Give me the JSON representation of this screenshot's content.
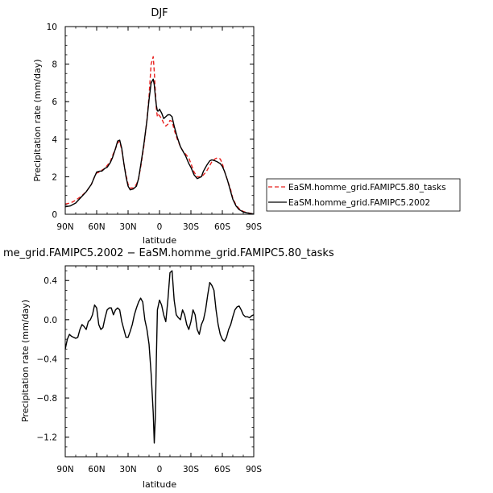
{
  "chart_data": [
    {
      "type": "line",
      "title": "DJF",
      "xlabel": "latitude",
      "ylabel": "Precipitation rate (mm/day)",
      "x_ticks": [
        {
          "value": 90,
          "label": "90N"
        },
        {
          "value": 60,
          "label": "60N"
        },
        {
          "value": 30,
          "label": "30N"
        },
        {
          "value": 0,
          "label": "0"
        },
        {
          "value": -30,
          "label": "30S"
        },
        {
          "value": -60,
          "label": "60S"
        },
        {
          "value": -90,
          "label": "90S"
        }
      ],
      "xlim": [
        90,
        -90
      ],
      "ylim": [
        0,
        10
      ],
      "y_ticks": [
        {
          "value": 0,
          "label": "0"
        },
        {
          "value": 2,
          "label": "2"
        },
        {
          "value": 4,
          "label": "4"
        },
        {
          "value": 6,
          "label": "6"
        },
        {
          "value": 8,
          "label": "8"
        },
        {
          "value": 10,
          "label": "10"
        }
      ],
      "legend_position": "right",
      "series": [
        {
          "name": "EaSM.homme_grid.FAMIPC5.80_tasks",
          "color": "#e8211f",
          "dash": "dashed",
          "x": [
            90,
            85,
            80,
            75,
            70,
            65,
            62,
            60,
            57,
            55,
            52,
            50,
            47,
            45,
            42,
            40,
            38,
            36,
            34,
            32,
            30,
            28,
            25,
            22,
            20,
            18,
            15,
            12,
            10,
            8,
            6,
            5,
            4,
            3,
            2,
            1,
            0,
            -2,
            -4,
            -6,
            -8,
            -10,
            -12,
            -14,
            -17,
            -20,
            -22,
            -25,
            -28,
            -30,
            -33,
            -36,
            -40,
            -42,
            -45,
            -48,
            -50,
            -53,
            -55,
            -58,
            -60,
            -62,
            -65,
            -68,
            -70,
            -73,
            -76,
            -80,
            -84,
            -87,
            -90
          ],
          "y": [
            0.55,
            0.6,
            0.75,
            0.95,
            1.2,
            1.6,
            2.0,
            2.2,
            2.25,
            2.35,
            2.45,
            2.6,
            2.8,
            3.1,
            3.5,
            3.8,
            3.9,
            3.4,
            2.7,
            2.1,
            1.6,
            1.4,
            1.4,
            1.6,
            1.9,
            2.5,
            3.6,
            5.0,
            6.3,
            8.0,
            8.4,
            7.6,
            6.6,
            5.6,
            5.2,
            5.3,
            5.25,
            5.1,
            4.85,
            4.7,
            4.8,
            5.0,
            4.95,
            4.5,
            4.0,
            3.6,
            3.4,
            3.2,
            3.0,
            2.7,
            2.25,
            2.0,
            2.0,
            2.1,
            2.3,
            2.6,
            2.8,
            2.95,
            3.0,
            2.95,
            2.7,
            2.3,
            1.8,
            1.3,
            0.85,
            0.5,
            0.3,
            0.15,
            0.08,
            0.05,
            0.02
          ]
        },
        {
          "name": "EaSM.homme_grid.FAMIPC5.2002",
          "color": "#000000",
          "dash": "solid",
          "x": [
            90,
            85,
            80,
            75,
            70,
            65,
            62,
            60,
            57,
            55,
            52,
            50,
            47,
            45,
            42,
            40,
            38,
            36,
            34,
            32,
            30,
            28,
            25,
            22,
            20,
            18,
            15,
            12,
            10,
            8,
            6,
            5,
            4,
            3,
            2,
            1,
            0,
            -2,
            -4,
            -6,
            -8,
            -10,
            -12,
            -14,
            -17,
            -20,
            -22,
            -25,
            -28,
            -30,
            -33,
            -36,
            -40,
            -42,
            -45,
            -48,
            -50,
            -53,
            -55,
            -58,
            -60,
            -62,
            -65,
            -68,
            -70,
            -73,
            -76,
            -80,
            -84,
            -87,
            -90
          ],
          "y": [
            0.4,
            0.45,
            0.6,
            0.9,
            1.2,
            1.6,
            2.0,
            2.25,
            2.3,
            2.3,
            2.45,
            2.5,
            2.75,
            3.0,
            3.5,
            3.9,
            3.95,
            3.5,
            2.7,
            2.0,
            1.5,
            1.3,
            1.35,
            1.5,
            1.9,
            2.6,
            3.7,
            5.0,
            6.1,
            7.0,
            7.2,
            6.9,
            6.3,
            5.8,
            5.5,
            5.5,
            5.6,
            5.4,
            5.1,
            5.2,
            5.3,
            5.3,
            5.2,
            4.7,
            4.1,
            3.6,
            3.4,
            3.1,
            2.7,
            2.5,
            2.1,
            1.9,
            2.0,
            2.3,
            2.6,
            2.85,
            2.9,
            2.85,
            2.8,
            2.7,
            2.55,
            2.3,
            1.8,
            1.2,
            0.8,
            0.45,
            0.25,
            0.12,
            0.07,
            0.04,
            0.02
          ]
        }
      ]
    },
    {
      "type": "line",
      "title": "me_grid.FAMIPC5.2002 − EaSM.homme_grid.FAMIPC5.80_tasks",
      "xlabel": "latitude",
      "ylabel": "Precipitation rate (mm/day)",
      "x_ticks": [
        {
          "value": 90,
          "label": "90N"
        },
        {
          "value": 60,
          "label": "60N"
        },
        {
          "value": 30,
          "label": "30N"
        },
        {
          "value": 0,
          "label": "0"
        },
        {
          "value": -30,
          "label": "30S"
        },
        {
          "value": -60,
          "label": "60S"
        },
        {
          "value": -90,
          "label": "90S"
        }
      ],
      "xlim": [
        90,
        -90
      ],
      "ylim": [
        -1.4,
        0.55
      ],
      "y_ticks": [
        {
          "value": 0.4,
          "label": "0.4"
        },
        {
          "value": 0.0,
          "label": "0.0"
        },
        {
          "value": -0.4,
          "label": "−0.4"
        },
        {
          "value": -0.8,
          "label": "−0.8"
        },
        {
          "value": -1.2,
          "label": "−1.2"
        }
      ],
      "series": [
        {
          "color": "#000000",
          "dash": "solid",
          "x": [
            90,
            88,
            86,
            84,
            82,
            80,
            78,
            76,
            74,
            72,
            70,
            68,
            66,
            64,
            62,
            60,
            58,
            56,
            54,
            52,
            50,
            48,
            46,
            44,
            42,
            40,
            38,
            36,
            34,
            32,
            30,
            28,
            26,
            24,
            22,
            20,
            18,
            16,
            14,
            12,
            10,
            8,
            6,
            5,
            4,
            3,
            2,
            0,
            -2,
            -4,
            -6,
            -8,
            -10,
            -12,
            -14,
            -16,
            -18,
            -20,
            -22,
            -24,
            -26,
            -28,
            -30,
            -32,
            -34,
            -36,
            -38,
            -40,
            -42,
            -44,
            -46,
            -48,
            -50,
            -52,
            -54,
            -56,
            -58,
            -60,
            -62,
            -64,
            -66,
            -68,
            -70,
            -72,
            -74,
            -76,
            -78,
            -80,
            -82,
            -84,
            -86,
            -88,
            -90
          ],
          "y": [
            -0.3,
            -0.2,
            -0.15,
            -0.17,
            -0.18,
            -0.19,
            -0.18,
            -0.1,
            -0.05,
            -0.07,
            -0.1,
            -0.02,
            0.0,
            0.05,
            0.15,
            0.12,
            -0.05,
            -0.1,
            -0.08,
            0.02,
            0.1,
            0.12,
            0.12,
            0.05,
            0.1,
            0.12,
            0.1,
            -0.02,
            -0.1,
            -0.18,
            -0.18,
            -0.12,
            -0.05,
            0.05,
            0.12,
            0.18,
            0.22,
            0.18,
            0.0,
            -0.1,
            -0.25,
            -0.55,
            -0.95,
            -1.26,
            -1.0,
            -0.4,
            0.1,
            0.2,
            0.15,
            0.05,
            -0.02,
            0.2,
            0.48,
            0.5,
            0.2,
            0.05,
            0.02,
            0.0,
            0.1,
            0.05,
            -0.05,
            -0.1,
            -0.02,
            0.1,
            0.05,
            -0.1,
            -0.15,
            -0.05,
            0.0,
            0.1,
            0.25,
            0.38,
            0.35,
            0.3,
            0.1,
            -0.05,
            -0.15,
            -0.2,
            -0.22,
            -0.18,
            -0.1,
            -0.05,
            0.03,
            0.1,
            0.13,
            0.14,
            0.1,
            0.05,
            0.03,
            0.03,
            0.02,
            0.04,
            0.05
          ]
        }
      ]
    }
  ]
}
